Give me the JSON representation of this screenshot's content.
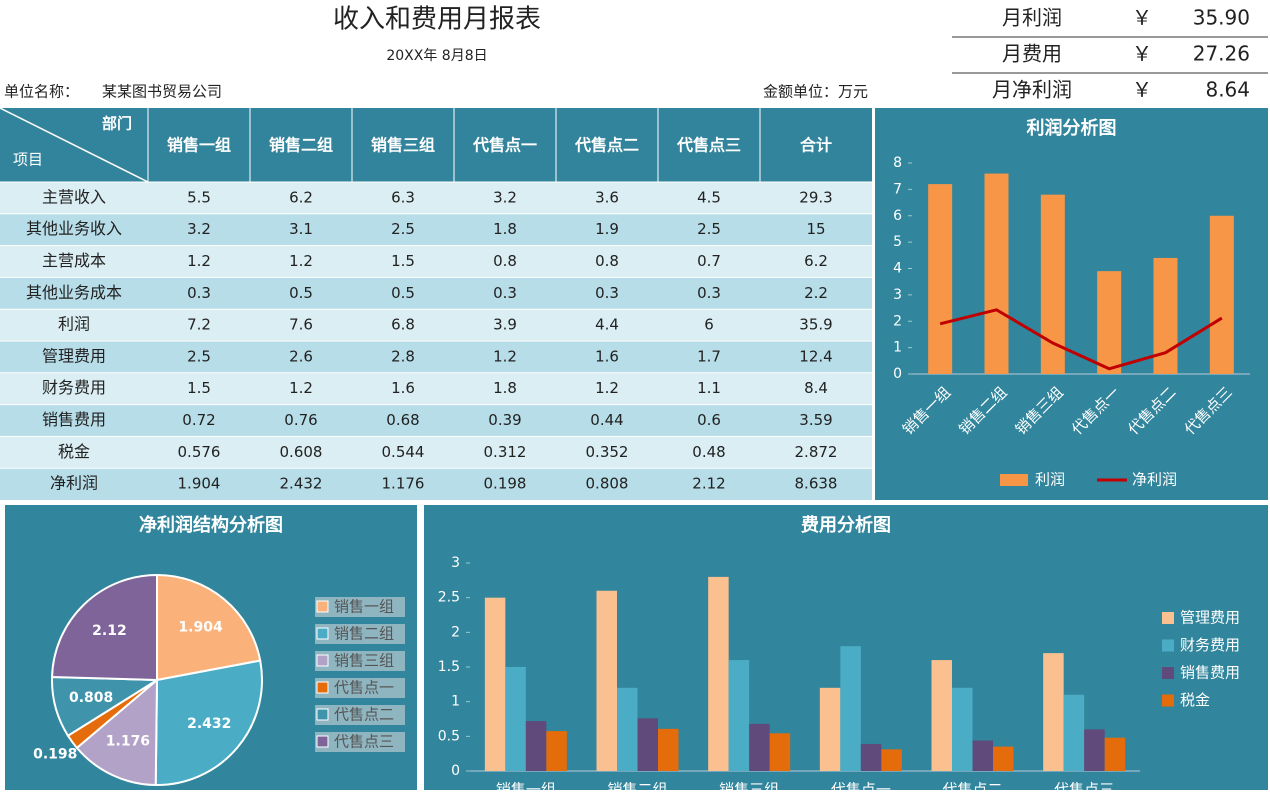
{
  "header": {
    "title": "收入和费用月报表",
    "date": "20XX年 8月8日",
    "unit_name_label": "单位名称：",
    "unit_name": "某某图书贸易公司",
    "amount_unit": "金额单位：万元"
  },
  "summary": [
    {
      "label": "月利润",
      "currency": "￥",
      "value": "35.90"
    },
    {
      "label": "月费用",
      "currency": "￥",
      "value": "27.26"
    },
    {
      "label": "月净利润",
      "currency": "￥",
      "value": "8.64"
    }
  ],
  "table": {
    "corner_top": "部门",
    "corner_bottom": "项目",
    "columns": [
      "销售一组",
      "销售二组",
      "销售三组",
      "代售点一",
      "代售点二",
      "代售点三",
      "合计"
    ],
    "rows": [
      {
        "label": "主营收入",
        "values": [
          5.5,
          6.2,
          6.3,
          3.2,
          3.6,
          4.5,
          29.3
        ]
      },
      {
        "label": "其他业务收入",
        "values": [
          3.2,
          3.1,
          2.5,
          1.8,
          1.9,
          2.5,
          15
        ]
      },
      {
        "label": "主营成本",
        "values": [
          1.2,
          1.2,
          1.5,
          0.8,
          0.8,
          0.7,
          6.2
        ]
      },
      {
        "label": "其他业务成本",
        "values": [
          0.3,
          0.5,
          0.5,
          0.3,
          0.3,
          0.3,
          2.2
        ]
      },
      {
        "label": "利润",
        "values": [
          7.2,
          7.6,
          6.8,
          3.9,
          4.4,
          6,
          35.9
        ]
      },
      {
        "label": "管理费用",
        "values": [
          2.5,
          2.6,
          2.8,
          1.2,
          1.6,
          1.7,
          12.4
        ]
      },
      {
        "label": "财务费用",
        "values": [
          1.5,
          1.2,
          1.6,
          1.8,
          1.2,
          1.1,
          8.4
        ]
      },
      {
        "label": "销售费用",
        "values": [
          0.72,
          0.76,
          0.68,
          0.39,
          0.44,
          0.6,
          3.59
        ]
      },
      {
        "label": "税金",
        "values": [
          0.576,
          0.608,
          0.544,
          0.312,
          0.352,
          0.48,
          2.872
        ]
      },
      {
        "label": "净利润",
        "values": [
          1.904,
          2.432,
          1.176,
          0.198,
          0.808,
          2.12,
          8.638
        ]
      }
    ]
  },
  "chart_data": [
    {
      "type": "combo",
      "title": "利润分析图",
      "categories": [
        "销售一组",
        "销售二组",
        "销售三组",
        "代售点一",
        "代售点二",
        "代售点三"
      ],
      "series": [
        {
          "name": "利润",
          "color": "#f79646",
          "kind": "bar",
          "values": [
            7.2,
            7.6,
            6.8,
            3.9,
            4.4,
            6
          ]
        },
        {
          "name": "净利润",
          "color": "#c00000",
          "kind": "line",
          "values": [
            1.904,
            2.432,
            1.176,
            0.198,
            0.808,
            2.12
          ]
        }
      ],
      "ylim": [
        0,
        8
      ],
      "yticks": [
        0,
        1,
        2,
        3,
        4,
        5,
        6,
        7,
        8
      ],
      "legend": "bottom"
    },
    {
      "type": "pie",
      "title": "净利润结构分析图",
      "categories": [
        "销售一组",
        "销售二组",
        "销售三组",
        "代售点一",
        "代售点二",
        "代售点三"
      ],
      "values": [
        1.904,
        2.432,
        1.176,
        0.198,
        0.808,
        2.12
      ],
      "colors": [
        "#fab27a",
        "#4bacc6",
        "#b3a2c7",
        "#e46c0a",
        "#3f94ab",
        "#7e6499"
      ],
      "legend": "right"
    },
    {
      "type": "bar",
      "title": "费用分析图",
      "categories": [
        "销售一组",
        "销售二组",
        "销售三组",
        "代售点一",
        "代售点二",
        "代售点三"
      ],
      "series": [
        {
          "name": "管理费用",
          "color": "#fac090",
          "values": [
            2.5,
            2.6,
            2.8,
            1.2,
            1.6,
            1.7
          ]
        },
        {
          "name": "财务费用",
          "color": "#4bacc6",
          "values": [
            1.5,
            1.2,
            1.6,
            1.8,
            1.2,
            1.1
          ]
        },
        {
          "name": "销售费用",
          "color": "#604a7b",
          "values": [
            0.72,
            0.76,
            0.68,
            0.39,
            0.44,
            0.6
          ]
        },
        {
          "name": "税金",
          "color": "#e46c0a",
          "values": [
            0.576,
            0.608,
            0.544,
            0.312,
            0.352,
            0.48
          ]
        }
      ],
      "ylim": [
        0,
        3
      ],
      "yticks": [
        0,
        0.5,
        1,
        1.5,
        2,
        2.5,
        3
      ],
      "legend": "right"
    }
  ]
}
